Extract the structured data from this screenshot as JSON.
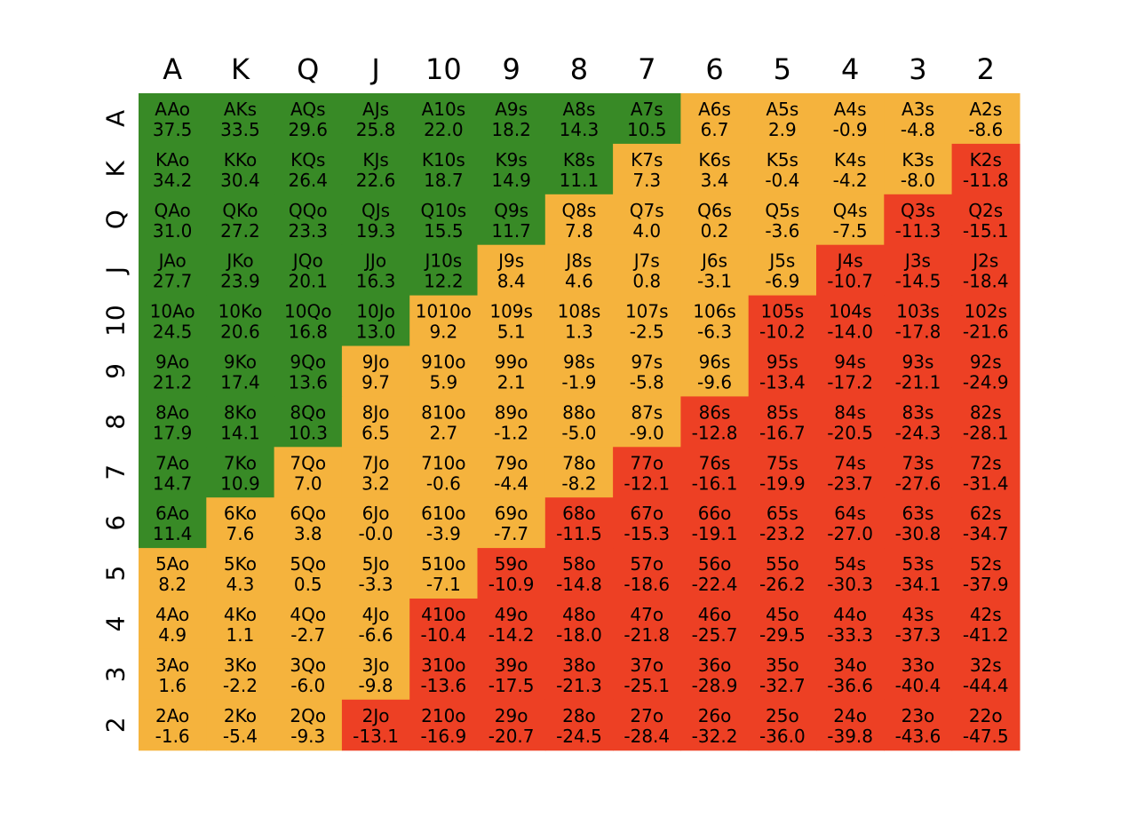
{
  "colors": {
    "green": "#388a26",
    "yellow": "#f5b33d",
    "red": "#ed4024",
    "background": "#ffffff"
  },
  "chart_data": {
    "type": "heatmap",
    "title": "",
    "xlabel": "",
    "ylabel": "",
    "column_labels": [
      "A",
      "K",
      "Q",
      "J",
      "10",
      "9",
      "8",
      "7",
      "6",
      "5",
      "4",
      "3",
      "2"
    ],
    "row_labels": [
      "A",
      "K",
      "Q",
      "J",
      "10",
      "9",
      "8",
      "7",
      "6",
      "5",
      "4",
      "3",
      "2"
    ],
    "hands": [
      [
        "AAo",
        "AKs",
        "AQs",
        "AJs",
        "A10s",
        "A9s",
        "A8s",
        "A7s",
        "A6s",
        "A5s",
        "A4s",
        "A3s",
        "A2s"
      ],
      [
        "KAo",
        "KKo",
        "KQs",
        "KJs",
        "K10s",
        "K9s",
        "K8s",
        "K7s",
        "K6s",
        "K5s",
        "K4s",
        "K3s",
        "K2s"
      ],
      [
        "QAo",
        "QKo",
        "QQo",
        "QJs",
        "Q10s",
        "Q9s",
        "Q8s",
        "Q7s",
        "Q6s",
        "Q5s",
        "Q4s",
        "Q3s",
        "Q2s"
      ],
      [
        "JAo",
        "JKo",
        "JQo",
        "JJo",
        "J10s",
        "J9s",
        "J8s",
        "J7s",
        "J6s",
        "J5s",
        "J4s",
        "J3s",
        "J2s"
      ],
      [
        "10Ao",
        "10Ko",
        "10Qo",
        "10Jo",
        "1010o",
        "109s",
        "108s",
        "107s",
        "106s",
        "105s",
        "104s",
        "103s",
        "102s"
      ],
      [
        "9Ao",
        "9Ko",
        "9Qo",
        "9Jo",
        "910o",
        "99o",
        "98s",
        "97s",
        "96s",
        "95s",
        "94s",
        "93s",
        "92s"
      ],
      [
        "8Ao",
        "8Ko",
        "8Qo",
        "8Jo",
        "810o",
        "89o",
        "88o",
        "87s",
        "86s",
        "85s",
        "84s",
        "83s",
        "82s"
      ],
      [
        "7Ao",
        "7Ko",
        "7Qo",
        "7Jo",
        "710o",
        "79o",
        "78o",
        "77o",
        "76s",
        "75s",
        "74s",
        "73s",
        "72s"
      ],
      [
        "6Ao",
        "6Ko",
        "6Qo",
        "6Jo",
        "610o",
        "69o",
        "68o",
        "67o",
        "66o",
        "65s",
        "64s",
        "63s",
        "62s"
      ],
      [
        "5Ao",
        "5Ko",
        "5Qo",
        "5Jo",
        "510o",
        "59o",
        "58o",
        "57o",
        "56o",
        "55o",
        "54s",
        "53s",
        "52s"
      ],
      [
        "4Ao",
        "4Ko",
        "4Qo",
        "4Jo",
        "410o",
        "49o",
        "48o",
        "47o",
        "46o",
        "45o",
        "44o",
        "43s",
        "42s"
      ],
      [
        "3Ao",
        "3Ko",
        "3Qo",
        "3Jo",
        "310o",
        "39o",
        "38o",
        "37o",
        "36o",
        "35o",
        "34o",
        "33o",
        "32s"
      ],
      [
        "2Ao",
        "2Ko",
        "2Qo",
        "2Jo",
        "210o",
        "29o",
        "28o",
        "27o",
        "26o",
        "25o",
        "24o",
        "23o",
        "22o"
      ]
    ],
    "values": [
      [
        "37.5",
        "33.5",
        "29.6",
        "25.8",
        "22.0",
        "18.2",
        "14.3",
        "10.5",
        "6.7",
        "2.9",
        "-0.9",
        "-4.8",
        "-8.6"
      ],
      [
        "34.2",
        "30.4",
        "26.4",
        "22.6",
        "18.7",
        "14.9",
        "11.1",
        "7.3",
        "3.4",
        "-0.4",
        "-4.2",
        "-8.0",
        "-11.8"
      ],
      [
        "31.0",
        "27.2",
        "23.3",
        "19.3",
        "15.5",
        "11.7",
        "7.8",
        "4.0",
        "0.2",
        "-3.6",
        "-7.5",
        "-11.3",
        "-15.1"
      ],
      [
        "27.7",
        "23.9",
        "20.1",
        "16.3",
        "12.2",
        "8.4",
        "4.6",
        "0.8",
        "-3.1",
        "-6.9",
        "-10.7",
        "-14.5",
        "-18.4"
      ],
      [
        "24.5",
        "20.6",
        "16.8",
        "13.0",
        "9.2",
        "5.1",
        "1.3",
        "-2.5",
        "-6.3",
        "-10.2",
        "-14.0",
        "-17.8",
        "-21.6"
      ],
      [
        "21.2",
        "17.4",
        "13.6",
        "9.7",
        "5.9",
        "2.1",
        "-1.9",
        "-5.8",
        "-9.6",
        "-13.4",
        "-17.2",
        "-21.1",
        "-24.9"
      ],
      [
        "17.9",
        "14.1",
        "10.3",
        "6.5",
        "2.7",
        "-1.2",
        "-5.0",
        "-9.0",
        "-12.8",
        "-16.7",
        "-20.5",
        "-24.3",
        "-28.1"
      ],
      [
        "14.7",
        "10.9",
        "7.0",
        "3.2",
        "-0.6",
        "-4.4",
        "-8.2",
        "-12.1",
        "-16.1",
        "-19.9",
        "-23.7",
        "-27.6",
        "-31.4"
      ],
      [
        "11.4",
        "7.6",
        "3.8",
        "-0.0",
        "-3.9",
        "-7.7",
        "-11.5",
        "-15.3",
        "-19.1",
        "-23.2",
        "-27.0",
        "-30.8",
        "-34.7"
      ],
      [
        "8.2",
        "4.3",
        "0.5",
        "-3.3",
        "-7.1",
        "-10.9",
        "-14.8",
        "-18.6",
        "-22.4",
        "-26.2",
        "-30.3",
        "-34.1",
        "-37.9"
      ],
      [
        "4.9",
        "1.1",
        "-2.7",
        "-6.6",
        "-10.4",
        "-14.2",
        "-18.0",
        "-21.8",
        "-25.7",
        "-29.5",
        "-33.3",
        "-37.3",
        "-41.2"
      ],
      [
        "1.6",
        "-2.2",
        "-6.0",
        "-9.8",
        "-13.6",
        "-17.5",
        "-21.3",
        "-25.1",
        "-28.9",
        "-32.7",
        "-36.6",
        "-40.4",
        "-44.4"
      ],
      [
        "-1.6",
        "-5.4",
        "-9.3",
        "-13.1",
        "-16.9",
        "-20.7",
        "-24.5",
        "-28.4",
        "-32.2",
        "-36.0",
        "-39.8",
        "-43.6",
        "-47.5"
      ]
    ],
    "color_categories": [
      [
        "g",
        "g",
        "g",
        "g",
        "g",
        "g",
        "g",
        "g",
        "y",
        "y",
        "y",
        "y",
        "y"
      ],
      [
        "g",
        "g",
        "g",
        "g",
        "g",
        "g",
        "g",
        "y",
        "y",
        "y",
        "y",
        "y",
        "r"
      ],
      [
        "g",
        "g",
        "g",
        "g",
        "g",
        "g",
        "y",
        "y",
        "y",
        "y",
        "y",
        "r",
        "r"
      ],
      [
        "g",
        "g",
        "g",
        "g",
        "g",
        "y",
        "y",
        "y",
        "y",
        "y",
        "r",
        "r",
        "r"
      ],
      [
        "g",
        "g",
        "g",
        "g",
        "y",
        "y",
        "y",
        "y",
        "y",
        "r",
        "r",
        "r",
        "r"
      ],
      [
        "g",
        "g",
        "g",
        "y",
        "y",
        "y",
        "y",
        "y",
        "y",
        "r",
        "r",
        "r",
        "r"
      ],
      [
        "g",
        "g",
        "g",
        "y",
        "y",
        "y",
        "y",
        "y",
        "r",
        "r",
        "r",
        "r",
        "r"
      ],
      [
        "g",
        "g",
        "y",
        "y",
        "y",
        "y",
        "y",
        "r",
        "r",
        "r",
        "r",
        "r",
        "r"
      ],
      [
        "g",
        "y",
        "y",
        "y",
        "y",
        "y",
        "r",
        "r",
        "r",
        "r",
        "r",
        "r",
        "r"
      ],
      [
        "y",
        "y",
        "y",
        "y",
        "y",
        "r",
        "r",
        "r",
        "r",
        "r",
        "r",
        "r",
        "r"
      ],
      [
        "y",
        "y",
        "y",
        "y",
        "r",
        "r",
        "r",
        "r",
        "r",
        "r",
        "r",
        "r",
        "r"
      ],
      [
        "y",
        "y",
        "y",
        "y",
        "r",
        "r",
        "r",
        "r",
        "r",
        "r",
        "r",
        "r",
        "r"
      ],
      [
        "y",
        "y",
        "y",
        "r",
        "r",
        "r",
        "r",
        "r",
        "r",
        "r",
        "r",
        "r",
        "r"
      ]
    ],
    "grid": false,
    "legend": "none"
  }
}
